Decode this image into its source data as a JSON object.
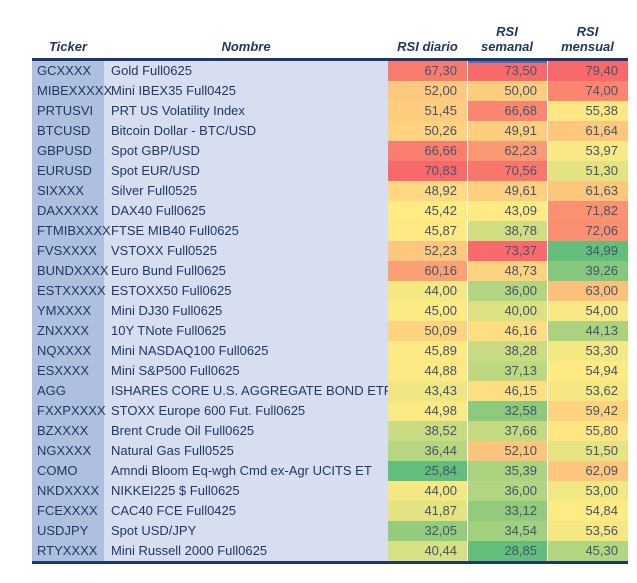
{
  "header": {
    "columns": [
      "Ticker",
      "Nombre",
      "RSI diario",
      "RSI semanal",
      "RSI mensual"
    ]
  },
  "table": {
    "rows": [
      [
        "GCXXXX",
        "Gold Full0625",
        "67,30",
        "73,50",
        "79,40"
      ],
      [
        "MIBEXXXXX",
        "Mini IBEX35 Full0425",
        "52,00",
        "50,00",
        "74,00"
      ],
      [
        "PRTUSVI",
        "PRT US Volatility Index",
        "51,45",
        "66,68",
        "55,38"
      ],
      [
        "BTCUSD",
        "Bitcoin Dollar - BTC/USD",
        "50,26",
        "49,91",
        "61,64"
      ],
      [
        "GBPUSD",
        "Spot GBP/USD",
        "66,66",
        "62,23",
        "53,97"
      ],
      [
        "EURUSD",
        "Spot EUR/USD",
        "70,83",
        "70,56",
        "51,30"
      ],
      [
        "SIXXXX",
        "Silver Full0525",
        "48,92",
        "49,61",
        "61,63"
      ],
      [
        "DAXXXXX",
        "DAX40 Full0625",
        "45,42",
        "43,09",
        "71,82"
      ],
      [
        "FTMIBXXXX",
        "FTSE MIB40 Full0625",
        "45,87",
        "38,78",
        "72,06"
      ],
      [
        "FVSXXXX",
        "VSTOXX Full0525",
        "52,23",
        "73,37",
        "34,99"
      ],
      [
        "BUNDXXXX",
        "Euro Bund Full0625",
        "60,16",
        "48,73",
        "39,26"
      ],
      [
        "ESTXXXXX",
        "ESTOXX50 Full0625",
        "44,00",
        "36,00",
        "63,00"
      ],
      [
        "YMXXXX",
        "Mini DJ30 Full0625",
        "45,00",
        "40,00",
        "54,00"
      ],
      [
        "ZNXXXX",
        "10Y TNote Full0625",
        "50,09",
        "46,16",
        "44,13"
      ],
      [
        "NQXXXX",
        "Mini NASDAQ100 Full0625",
        "45,89",
        "38,28",
        "53,30"
      ],
      [
        "ESXXXX",
        "Mini S&P500 Full0625",
        "44,88",
        "37,13",
        "54,94"
      ],
      [
        "AGG",
        "ISHARES CORE U.S. AGGREGATE BOND ETF",
        "43,43",
        "46,15",
        "53,62"
      ],
      [
        "FXXPXXXX",
        "STOXX Europe 600 Fut. Full0625",
        "44,98",
        "32,58",
        "59,42"
      ],
      [
        "BZXXXX",
        "Brent Crude Oil Full0625",
        "38,52",
        "37,66",
        "55,80"
      ],
      [
        "NGXXXX",
        "Natural Gas Full0525",
        "36,44",
        "52,10",
        "51,50"
      ],
      [
        "COMO",
        "Amndi Bloom Eq-wgh Cmd ex-Agr UCITS ET",
        "25,84",
        "35,39",
        "62,09"
      ],
      [
        "NKDXXXX",
        "NIKKEI225 $ Full0625",
        "44,00",
        "36,00",
        "53,00"
      ],
      [
        "FCEXXXX",
        "CAC40 FCE Full0425",
        "41,87",
        "33,12",
        "54,84"
      ],
      [
        "USDJPY",
        "Spot USD/JPY",
        "32,05",
        "34,54",
        "53,56"
      ],
      [
        "RTYXXXX",
        "Mini Russell 2000 Full0625",
        "40,44",
        "28,85",
        "45,30"
      ]
    ]
  },
  "colors": {
    "scale_low": "#63BE7B",
    "scale_mid": "#FFEB84",
    "scale_high": "#F8696B",
    "ticker_fill": "#AFBFE0",
    "nombre_fill": "#D7DEF0",
    "rule_navy": "#1F3864",
    "header_text": "#1F3864",
    "value_text": "#44546A",
    "accent_line": "#4472C4"
  }
}
